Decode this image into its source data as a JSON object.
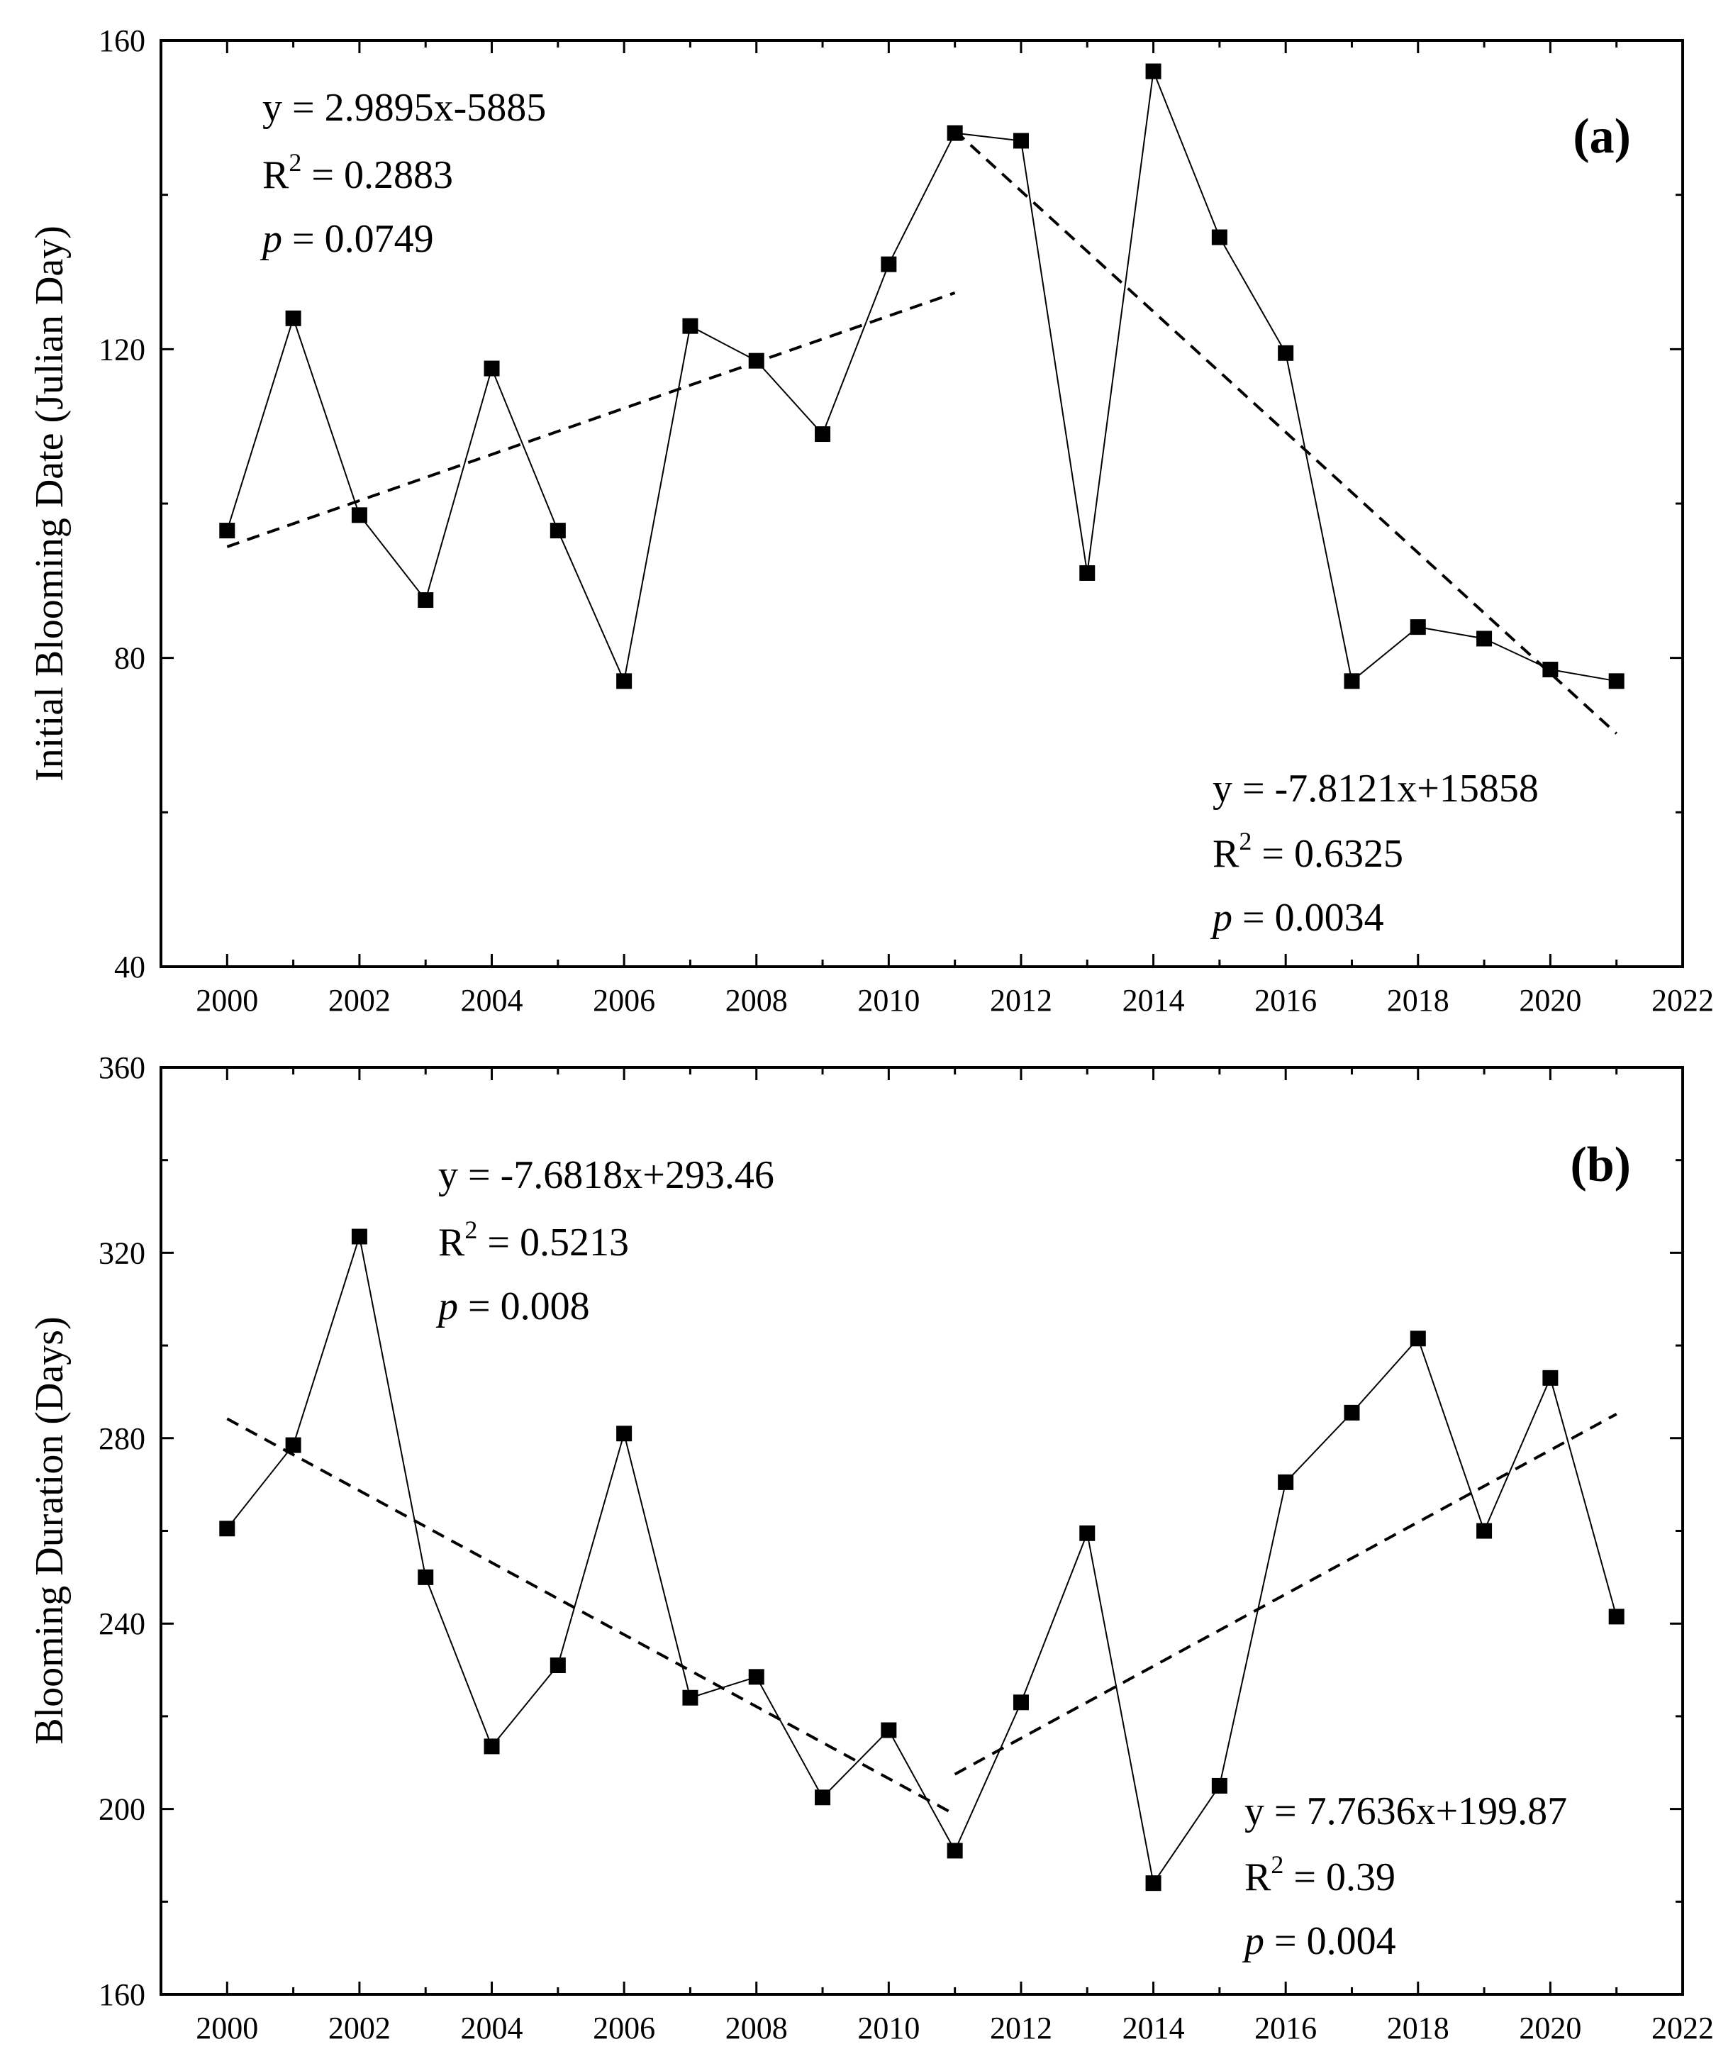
{
  "chart_data": [
    {
      "type": "line",
      "panel_label": "(a)",
      "ylabel": "Initial Blooming Date (Julian Day)",
      "xlabel": "",
      "xlim": [
        1999,
        2022
      ],
      "ylim": [
        40,
        160
      ],
      "x_ticks": [
        2000,
        2002,
        2004,
        2006,
        2008,
        2010,
        2012,
        2014,
        2016,
        2018,
        2020,
        2022
      ],
      "y_ticks": [
        40,
        80,
        120,
        160
      ],
      "series": [
        {
          "name": "Initial Blooming Date",
          "x": [
            2000,
            2001,
            2002,
            2003,
            2004,
            2005,
            2006,
            2007,
            2008,
            2009,
            2010,
            2011,
            2012,
            2013,
            2014,
            2015,
            2016,
            2017,
            2018,
            2019,
            2020,
            2021
          ],
          "values": [
            96.5,
            124,
            98.5,
            87.5,
            117.5,
            96.5,
            77,
            123,
            118.5,
            109,
            131,
            148,
            147,
            91,
            156,
            134.5,
            119.5,
            77,
            84,
            82.5,
            78.5,
            77
          ]
        }
      ],
      "trendlines": [
        {
          "x": [
            2000,
            2011
          ],
          "y": [
            94.4,
            127.3
          ]
        },
        {
          "x": [
            2011,
            2021
          ],
          "y": [
            148.3,
            70.2
          ]
        }
      ],
      "annotations": [
        {
          "lines": [
            "y = 2.9895x-5885",
            "R2 = 0.2883",
            "p = 0.0749"
          ],
          "eq": "y = 2.9895x-5885",
          "r2_prefix": "R",
          "r2_sup": "2",
          "r2_rest": " = 0.2883",
          "p_prefix": "p",
          "p_rest": " = 0.0749"
        },
        {
          "lines": [
            "y = -7.8121x+15858",
            "R2 = 0.6325",
            "p = 0.0034"
          ],
          "eq": "y = -7.8121x+15858",
          "r2_prefix": "R",
          "r2_sup": "2",
          "r2_rest": " = 0.6325",
          "p_prefix": "p",
          "p_rest": " = 0.0034"
        }
      ]
    },
    {
      "type": "line",
      "panel_label": "(b)",
      "ylabel": "Blooming Duration (Days)",
      "xlabel": "",
      "xlim": [
        1999,
        2022
      ],
      "ylim": [
        160,
        360
      ],
      "x_ticks": [
        2000,
        2002,
        2004,
        2006,
        2008,
        2010,
        2012,
        2014,
        2016,
        2018,
        2020,
        2022
      ],
      "y_ticks": [
        160,
        200,
        240,
        280,
        320,
        360
      ],
      "series": [
        {
          "name": "Blooming Duration",
          "x": [
            2000,
            2001,
            2002,
            2003,
            2004,
            2005,
            2006,
            2007,
            2008,
            2009,
            2010,
            2011,
            2012,
            2013,
            2014,
            2015,
            2016,
            2017,
            2018,
            2019,
            2020,
            2021
          ],
          "values": [
            260.5,
            278.5,
            323.5,
            250,
            213.5,
            231,
            281,
            224,
            228.5,
            202.5,
            217,
            191,
            223,
            259.5,
            184,
            205,
            270.5,
            285.5,
            301.5,
            260,
            293,
            241.5
          ]
        }
      ],
      "trendlines": [
        {
          "x": [
            2000,
            2011
          ],
          "y": [
            284.2,
            198.8
          ]
        },
        {
          "x": [
            2011,
            2021
          ],
          "y": [
            207.5,
            285.2
          ]
        }
      ],
      "annotations": [
        {
          "lines": [
            "y = -7.6818x+293.46",
            "R2 = 0.5213",
            "p = 0.008"
          ],
          "eq": "y = -7.6818x+293.46",
          "r2_prefix": "R",
          "r2_sup": "2",
          "r2_rest": " = 0.5213",
          "p_prefix": "p",
          "p_rest": " = 0.008"
        },
        {
          "lines": [
            "y = 7.7636x+199.87",
            "R2 = 0.39",
            "p = 0.004"
          ],
          "eq": "y = 7.7636x+199.87",
          "r2_prefix": "R",
          "r2_sup": "2",
          "r2_rest": " = 0.39",
          "p_prefix": "p",
          "p_rest": " = 0.004"
        }
      ]
    }
  ]
}
